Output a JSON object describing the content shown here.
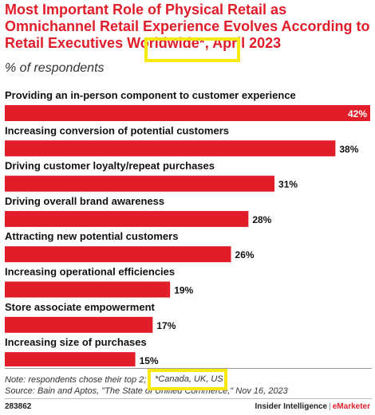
{
  "title": "Most Important Role of Physical Retail as Omnichannel Retail Experience Evolves According to Retail Executives Worldwide*, April 2023",
  "subtitle": "% of respondents",
  "chart_data": {
    "type": "bar",
    "orientation": "horizontal",
    "categories": [
      "Providing an in-person component to customer experience",
      "Increasing conversion of potential customers",
      "Driving customer loyalty/repeat purchases",
      "Driving overall brand awareness",
      "Attracting new potential customers",
      "Increasing operational efficiencies",
      "Store associate empowerment",
      "Increasing size of purchases"
    ],
    "values": [
      42,
      38,
      31,
      28,
      26,
      19,
      17,
      15
    ],
    "value_labels": [
      "42%",
      "38%",
      "31%",
      "28%",
      "26%",
      "19%",
      "17%",
      "15%"
    ],
    "xlim": [
      0,
      42
    ],
    "grid": false,
    "legend": "none"
  },
  "footnote": {
    "line1": "Note: respondents chose their top 2; *Canada, UK, US",
    "line2": "Source: Bain and Aptos, \"The State of Unified Commerce,\" Nov 16, 2023",
    "highlight_text": "*Canada, UK, US"
  },
  "chart_id": "283862",
  "brand": {
    "left": "Insider Intelligence",
    "separator": "|",
    "right": "eMarketer"
  },
  "colors": {
    "bar": "#e11d2a",
    "title": "#e11d2a",
    "highlight": "#f7e80d"
  }
}
